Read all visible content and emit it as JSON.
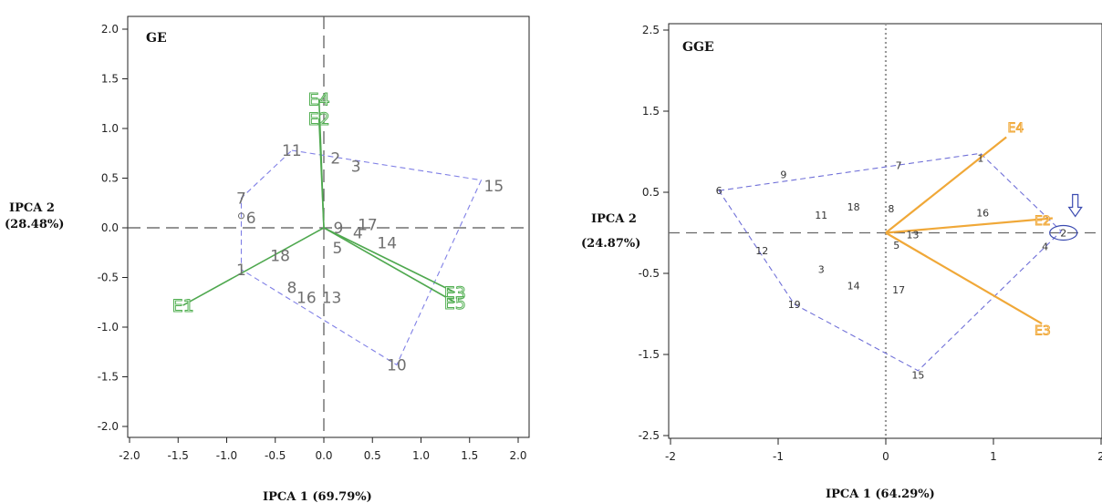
{
  "chart_data": [
    {
      "type": "scatter",
      "title": "GE",
      "xlabel": "IPCA 1 (69.79%)",
      "ylabel_line1": "IPCA 2",
      "ylabel_line2": "(28.48%)",
      "xlim": [
        -2.0,
        2.0
      ],
      "ylim": [
        -2.0,
        2.0
      ],
      "xticks": [
        "-2.0",
        "-1.5",
        "-1.0",
        "-0.5",
        "0.0",
        "0.5",
        "1.0",
        "1.5",
        "2.0"
      ],
      "yticks": [
        "2.0",
        "1.5",
        "1.0",
        "0.5",
        "0.0",
        "-0.5",
        "-1.0",
        "-1.5",
        "-2.0"
      ],
      "grid": false,
      "colors": {
        "hull": "#8080e6",
        "vector": "#4fa84f",
        "genotype": "#6f6f6f",
        "axis": "#555555"
      },
      "genotypes": [
        {
          "label": "1",
          "x": -0.85,
          "y": -0.42
        },
        {
          "label": "2",
          "x": 0.12,
          "y": 0.7
        },
        {
          "label": "3",
          "x": 0.33,
          "y": 0.62
        },
        {
          "label": "4",
          "x": 0.35,
          "y": -0.05
        },
        {
          "label": "5",
          "x": 0.14,
          "y": -0.2
        },
        {
          "label": "6",
          "x": -0.75,
          "y": 0.1
        },
        {
          "label": "7",
          "x": -0.85,
          "y": 0.3
        },
        {
          "label": "8",
          "x": -0.33,
          "y": -0.6
        },
        {
          "label": "9",
          "x": 0.15,
          "y": 0.0
        },
        {
          "label": "10",
          "x": 0.75,
          "y": -1.38
        },
        {
          "label": "11",
          "x": -0.33,
          "y": 0.78
        },
        {
          "label": "13",
          "x": 0.08,
          "y": -0.7
        },
        {
          "label": "14",
          "x": 0.65,
          "y": -0.15
        },
        {
          "label": "15",
          "x": 1.75,
          "y": 0.42
        },
        {
          "label": "16",
          "x": -0.18,
          "y": -0.7
        },
        {
          "label": "17",
          "x": 0.45,
          "y": 0.03
        },
        {
          "label": "18",
          "x": -0.45,
          "y": -0.28
        }
      ],
      "hull": [
        [
          -0.33,
          0.78
        ],
        [
          1.62,
          0.48
        ],
        [
          0.75,
          -1.38
        ],
        [
          -0.85,
          -0.42
        ],
        [
          -0.85,
          0.12
        ],
        [
          -0.85,
          0.3
        ]
      ],
      "environments": [
        {
          "label": "E1",
          "x": -1.45,
          "y": -0.78
        },
        {
          "label": "E2",
          "x": -0.05,
          "y": 1.1
        },
        {
          "label": "E3",
          "x": 1.35,
          "y": -0.65
        },
        {
          "label": "E4",
          "x": -0.05,
          "y": 1.3
        },
        {
          "label": "E5",
          "x": 1.35,
          "y": -0.75
        }
      ]
    },
    {
      "type": "scatter",
      "title": "GGE",
      "xlabel": "IPCA 1 (64.29%)",
      "ylabel_line1": "IPCA 2",
      "ylabel_line2": "(24.87%)",
      "xlim": [
        -2,
        2
      ],
      "ylim": [
        -2.5,
        2.5
      ],
      "xticks": [
        "-2",
        "-1",
        "0",
        "1",
        "2"
      ],
      "yticks": [
        "2.5",
        "1.5",
        "0.5",
        "-0.5",
        "-1.5",
        "-2.5"
      ],
      "grid": false,
      "colors": {
        "hull": "#7070d8",
        "vector": "#f0a838",
        "genotype": "#333333",
        "axis": "#666666",
        "marker": "#3a4ab0"
      },
      "genotypes": [
        {
          "label": "1",
          "x": 0.88,
          "y": 0.92
        },
        {
          "label": "2",
          "x": 1.65,
          "y": 0.0
        },
        {
          "label": "3",
          "x": -0.6,
          "y": -0.45
        },
        {
          "label": "4",
          "x": 1.48,
          "y": -0.17
        },
        {
          "label": "5",
          "x": 0.1,
          "y": -0.15
        },
        {
          "label": "6",
          "x": -1.55,
          "y": 0.52
        },
        {
          "label": "7",
          "x": 0.12,
          "y": 0.83
        },
        {
          "label": "8",
          "x": 0.05,
          "y": 0.3
        },
        {
          "label": "9",
          "x": -0.95,
          "y": 0.72
        },
        {
          "label": "11",
          "x": -0.6,
          "y": 0.22
        },
        {
          "label": "12",
          "x": -1.15,
          "y": -0.22
        },
        {
          "label": "13",
          "x": 0.25,
          "y": -0.02
        },
        {
          "label": "14",
          "x": -0.3,
          "y": -0.65
        },
        {
          "label": "15",
          "x": 0.3,
          "y": -1.75
        },
        {
          "label": "16",
          "x": 0.9,
          "y": 0.25
        },
        {
          "label": "17",
          "x": 0.12,
          "y": -0.7
        },
        {
          "label": "18",
          "x": -0.3,
          "y": 0.32
        },
        {
          "label": "19",
          "x": -0.85,
          "y": -0.88
        }
      ],
      "hull": [
        [
          -1.55,
          0.52
        ],
        [
          0.88,
          0.98
        ],
        [
          1.63,
          0.02
        ],
        [
          0.3,
          -1.7
        ],
        [
          -0.85,
          -0.88
        ]
      ],
      "environments": [
        {
          "label": "E4",
          "x": 1.25,
          "y": 1.3
        },
        {
          "label": "E2",
          "x": 1.5,
          "y": 0.15
        },
        {
          "label": "E3",
          "x": 1.5,
          "y": -1.2
        }
      ],
      "environment_vector_ends": [
        {
          "label": "E4",
          "x": 1.12,
          "y": 1.18
        },
        {
          "label": "E2",
          "x": 1.55,
          "y": 0.18
        },
        {
          "label": "E3",
          "x": 1.45,
          "y": -1.12
        }
      ],
      "ideal_marker": {
        "x": 1.65,
        "y": 0.0
      }
    }
  ]
}
